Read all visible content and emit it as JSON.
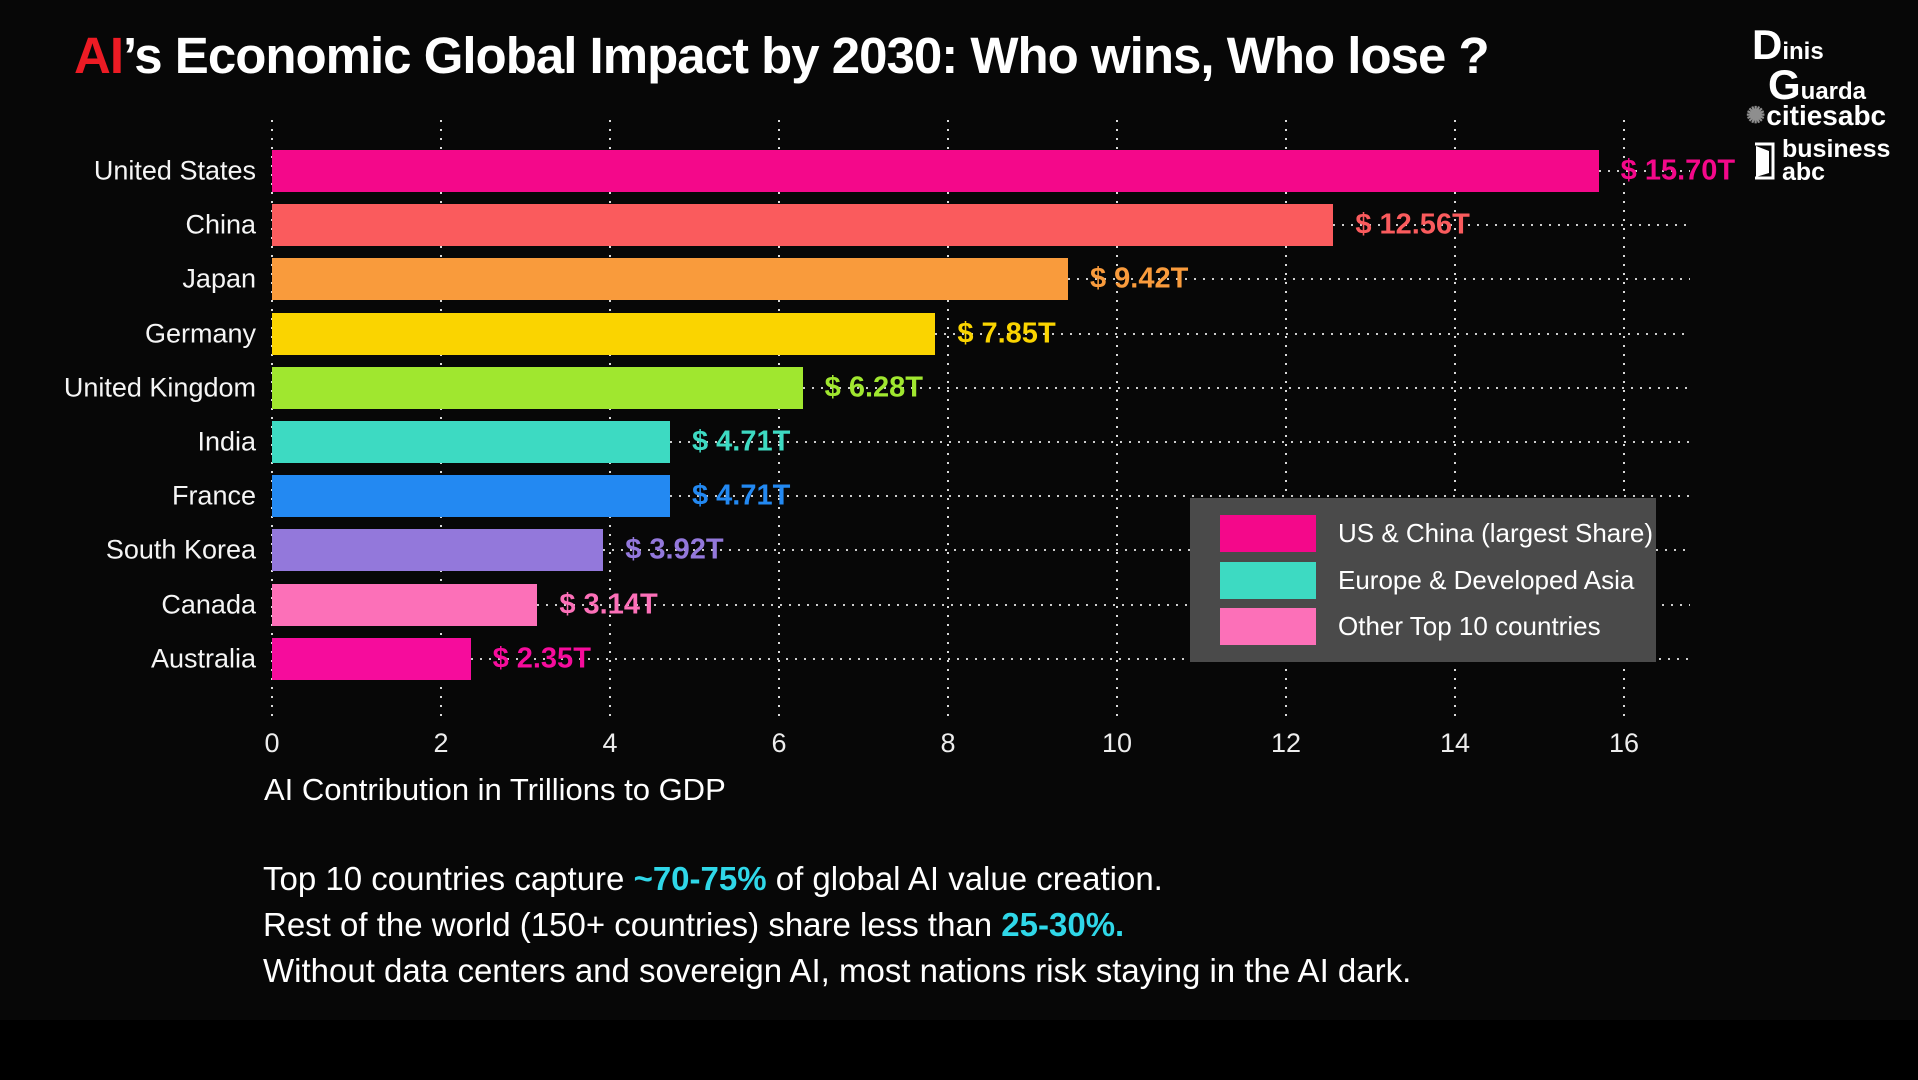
{
  "title": {
    "highlight": "AI",
    "rest": "’s Economic Global Impact by 2030: Who wins, Who lose ?"
  },
  "branding": {
    "dinis_guarda": {
      "first_initial": "D",
      "first_rest": "inis",
      "last_initial": "G",
      "last_rest": "uarda"
    },
    "citiesabc": {
      "label": "citiesabc"
    },
    "businessabc": {
      "line1": "business",
      "line2": "abc"
    }
  },
  "chart_data": {
    "type": "bar",
    "orientation": "horizontal",
    "title": "AI's Economic Global Impact by 2030: Who wins, Who lose ?",
    "xlabel": "AI Contribution in Trillions to GDP",
    "xlim": [
      0,
      16.8
    ],
    "xticks": [
      0,
      2,
      4,
      6,
      8,
      10,
      12,
      14,
      16
    ],
    "grid": "dotted vertical gridlines every 2T; dotted leader line from each bar end to right edge",
    "legend_position": "middle-right",
    "categories": [
      "United States",
      "China",
      "Japan",
      "Germany",
      "United Kingdom",
      "India",
      "France",
      "South Korea",
      "Canada",
      "Australia"
    ],
    "values": [
      15.7,
      12.56,
      9.42,
      7.85,
      6.28,
      4.71,
      4.71,
      3.92,
      3.14,
      2.35
    ],
    "value_labels": [
      "$ 15.70T",
      "$ 12.56T",
      "$ 9.42T",
      "$ 7.85T",
      "$ 6.28T",
      "$ 4.71T",
      "$ 4.71T",
      "$ 3.92T",
      "$ 3.14T",
      "$ 2.35T"
    ],
    "bar_colors": [
      "#F4088A",
      "#FA5B5D",
      "#F99B3C",
      "#FAD400",
      "#A0E72F",
      "#3DDAC2",
      "#2389F2",
      "#9378DB",
      "#FC70B8",
      "#F60C9C"
    ],
    "legend": {
      "background": "#4A4A4A",
      "items": [
        {
          "label": "US & China (largest Share)",
          "color": "#F4088A"
        },
        {
          "label": "Europe & Developed Asia",
          "color": "#3DDAC2"
        },
        {
          "label": "Other Top 10 countries",
          "color": "#FC70B8"
        }
      ]
    }
  },
  "notes": {
    "lines": [
      [
        {
          "text": "Top 10 countries capture ",
          "highlight": false
        },
        {
          "text": "~70-75%",
          "highlight": true
        },
        {
          "text": " of global AI value creation.",
          "highlight": false
        }
      ],
      [
        {
          "text": "Rest of the world (150+ countries) share less than ",
          "highlight": false
        },
        {
          "text": "25-30%.",
          "highlight": true
        }
      ],
      [
        {
          "text": "Without data centers and sovereign AI, most nations risk staying in the AI dark.",
          "highlight": false
        }
      ]
    ]
  },
  "colors": {
    "background": "#070707",
    "title_accent": "#ED1B24",
    "text": "#FFFFFF",
    "highlight_cyan": "#2FD7E8",
    "legend_background": "#4A4A4A"
  }
}
